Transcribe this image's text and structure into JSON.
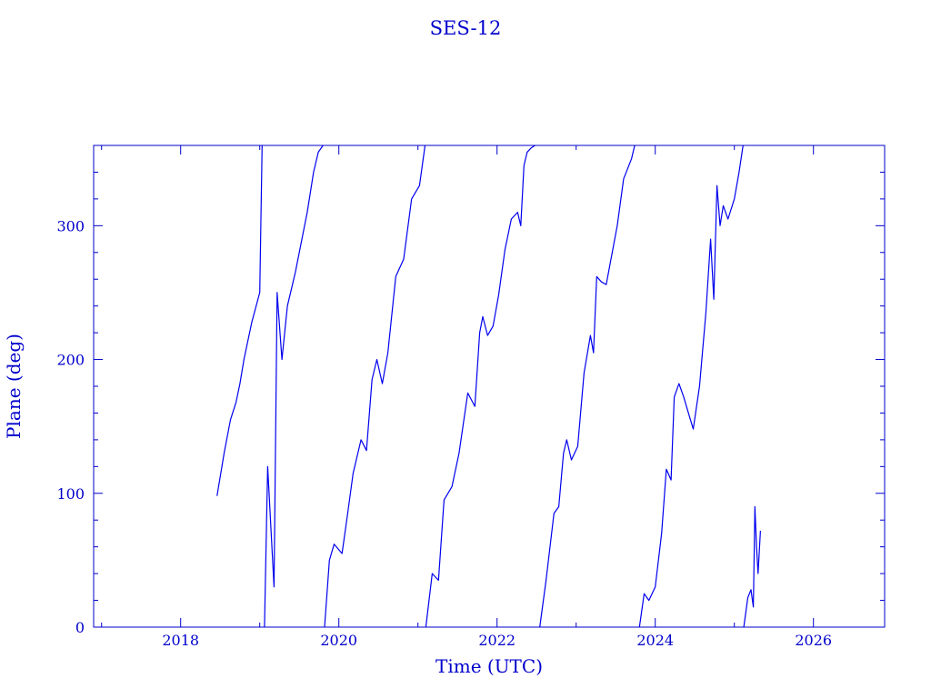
{
  "chart_data": {
    "type": "line",
    "title": "SES-12",
    "xlabel": "Time (UTC)",
    "ylabel": "Plane (deg)",
    "xlim": [
      2016.9,
      2026.9
    ],
    "ylim": [
      0,
      360
    ],
    "x_ticks": [
      2018,
      2020,
      2022,
      2024,
      2026
    ],
    "y_ticks": [
      0,
      100,
      200,
      300
    ],
    "grid": false,
    "legend": "none",
    "color": "#0000ee",
    "segments": [
      {
        "x": [
          2018.46,
          2018.55,
          2018.63,
          2018.7,
          2018.75,
          2018.8,
          2018.9,
          2019.0,
          2019.03
        ],
        "y": [
          98,
          130,
          155,
          168,
          182,
          200,
          228,
          250,
          360
        ]
      },
      {
        "x": [
          2019.06,
          2019.1,
          2019.18,
          2019.22,
          2019.28,
          2019.35,
          2019.45,
          2019.6,
          2019.68,
          2019.74,
          2019.8
        ],
        "y": [
          0,
          120,
          30,
          250,
          200,
          240,
          265,
          310,
          340,
          355,
          360
        ]
      },
      {
        "x": [
          2019.82,
          2019.88,
          2019.94,
          2020.04,
          2020.1,
          2020.18,
          2020.28,
          2020.35,
          2020.42,
          2020.48,
          2020.55,
          2020.62,
          2020.72,
          2020.82,
          2020.92,
          2021.02,
          2021.09
        ],
        "y": [
          0,
          50,
          62,
          55,
          80,
          115,
          140,
          132,
          185,
          200,
          182,
          205,
          262,
          275,
          320,
          330,
          360
        ]
      },
      {
        "x": [
          2021.1,
          2021.18,
          2021.26,
          2021.33,
          2021.43,
          2021.52,
          2021.63,
          2021.72,
          2021.78,
          2021.82,
          2021.88,
          2021.95,
          2022.02,
          2022.1,
          2022.18,
          2022.26,
          2022.3,
          2022.34,
          2022.38,
          2022.43,
          2022.48
        ],
        "y": [
          0,
          40,
          35,
          95,
          105,
          130,
          175,
          165,
          220,
          232,
          218,
          225,
          248,
          282,
          305,
          310,
          300,
          345,
          355,
          358,
          360
        ]
      },
      {
        "x": [
          2022.54,
          2022.62,
          2022.72,
          2022.78,
          2022.84,
          2022.88,
          2022.94,
          2023.02,
          2023.1,
          2023.18,
          2023.22,
          2023.26,
          2023.32,
          2023.38,
          2023.44,
          2023.52,
          2023.6,
          2023.7,
          2023.74
        ],
        "y": [
          0,
          35,
          85,
          90,
          130,
          140,
          125,
          135,
          190,
          218,
          205,
          262,
          258,
          256,
          275,
          300,
          335,
          350,
          360
        ]
      },
      {
        "x": [
          2023.8,
          2023.86,
          2023.92,
          2024.0,
          2024.08,
          2024.14,
          2024.2,
          2024.24,
          2024.3,
          2024.36,
          2024.42,
          2024.48,
          2024.56,
          2024.64,
          2024.7,
          2024.74,
          2024.78,
          2024.82,
          2024.86,
          2024.92,
          2025.0,
          2025.06,
          2025.11
        ],
        "y": [
          0,
          25,
          20,
          30,
          70,
          118,
          110,
          172,
          182,
          172,
          160,
          148,
          180,
          235,
          290,
          245,
          330,
          300,
          315,
          305,
          320,
          340,
          360
        ]
      },
      {
        "x": [
          2025.12,
          2025.17,
          2025.21,
          2025.24,
          2025.26,
          2025.28,
          2025.3,
          2025.33
        ],
        "y": [
          0,
          22,
          28,
          15,
          90,
          60,
          40,
          72
        ]
      }
    ]
  }
}
